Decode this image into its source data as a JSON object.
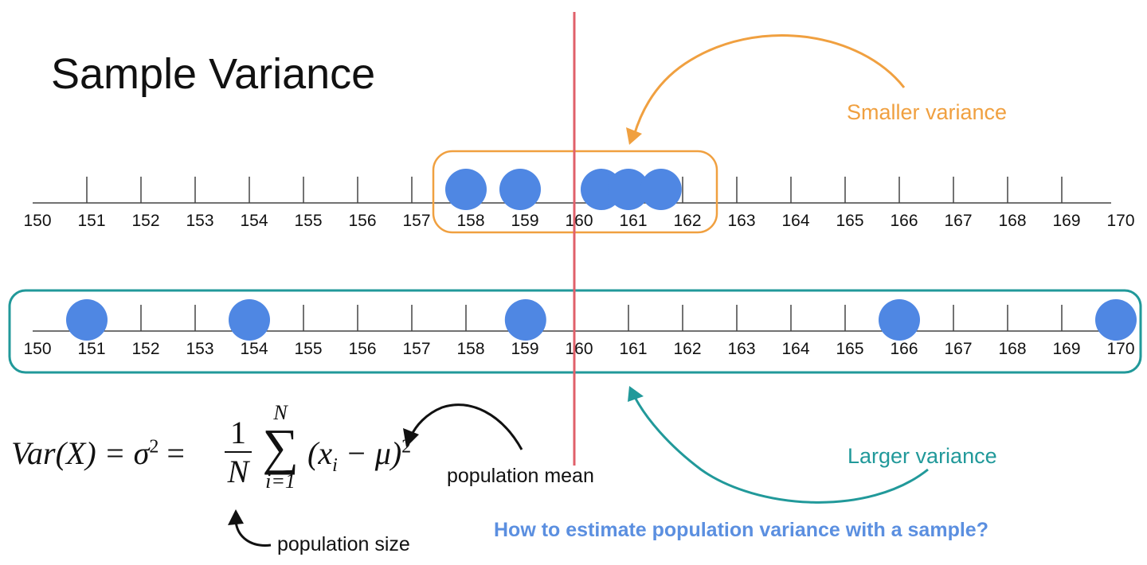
{
  "title": "Sample Variance",
  "axis": {
    "min": 150,
    "max": 170,
    "ticks": [
      150,
      151,
      152,
      153,
      154,
      155,
      156,
      157,
      158,
      159,
      160,
      161,
      162,
      163,
      164,
      165,
      166,
      167,
      168,
      169,
      170
    ]
  },
  "mean_line": {
    "value": 160,
    "color": "#e0606a"
  },
  "top_sample": {
    "label": "Smaller variance",
    "color": "#f0a040",
    "points": [
      158,
      159,
      160.5,
      161,
      161.6
    ]
  },
  "bottom_sample": {
    "label": "Larger variance",
    "color": "#21999a",
    "points": [
      151,
      154,
      159.1,
      166,
      170
    ]
  },
  "dot_color": "#4f87e3",
  "formula": {
    "lhs": "Var(X) = σ",
    "sq": "2",
    "eq": " = ",
    "num": "1",
    "den": "N",
    "sum": "∑",
    "sum_top": "N",
    "sum_bottom": "i=1",
    "body": "(x",
    "sub": "i",
    "body2": " − μ)",
    "pow": "2"
  },
  "annotations": {
    "mean": "population mean",
    "size": "population size"
  },
  "question": "How to estimate population variance with a sample?"
}
